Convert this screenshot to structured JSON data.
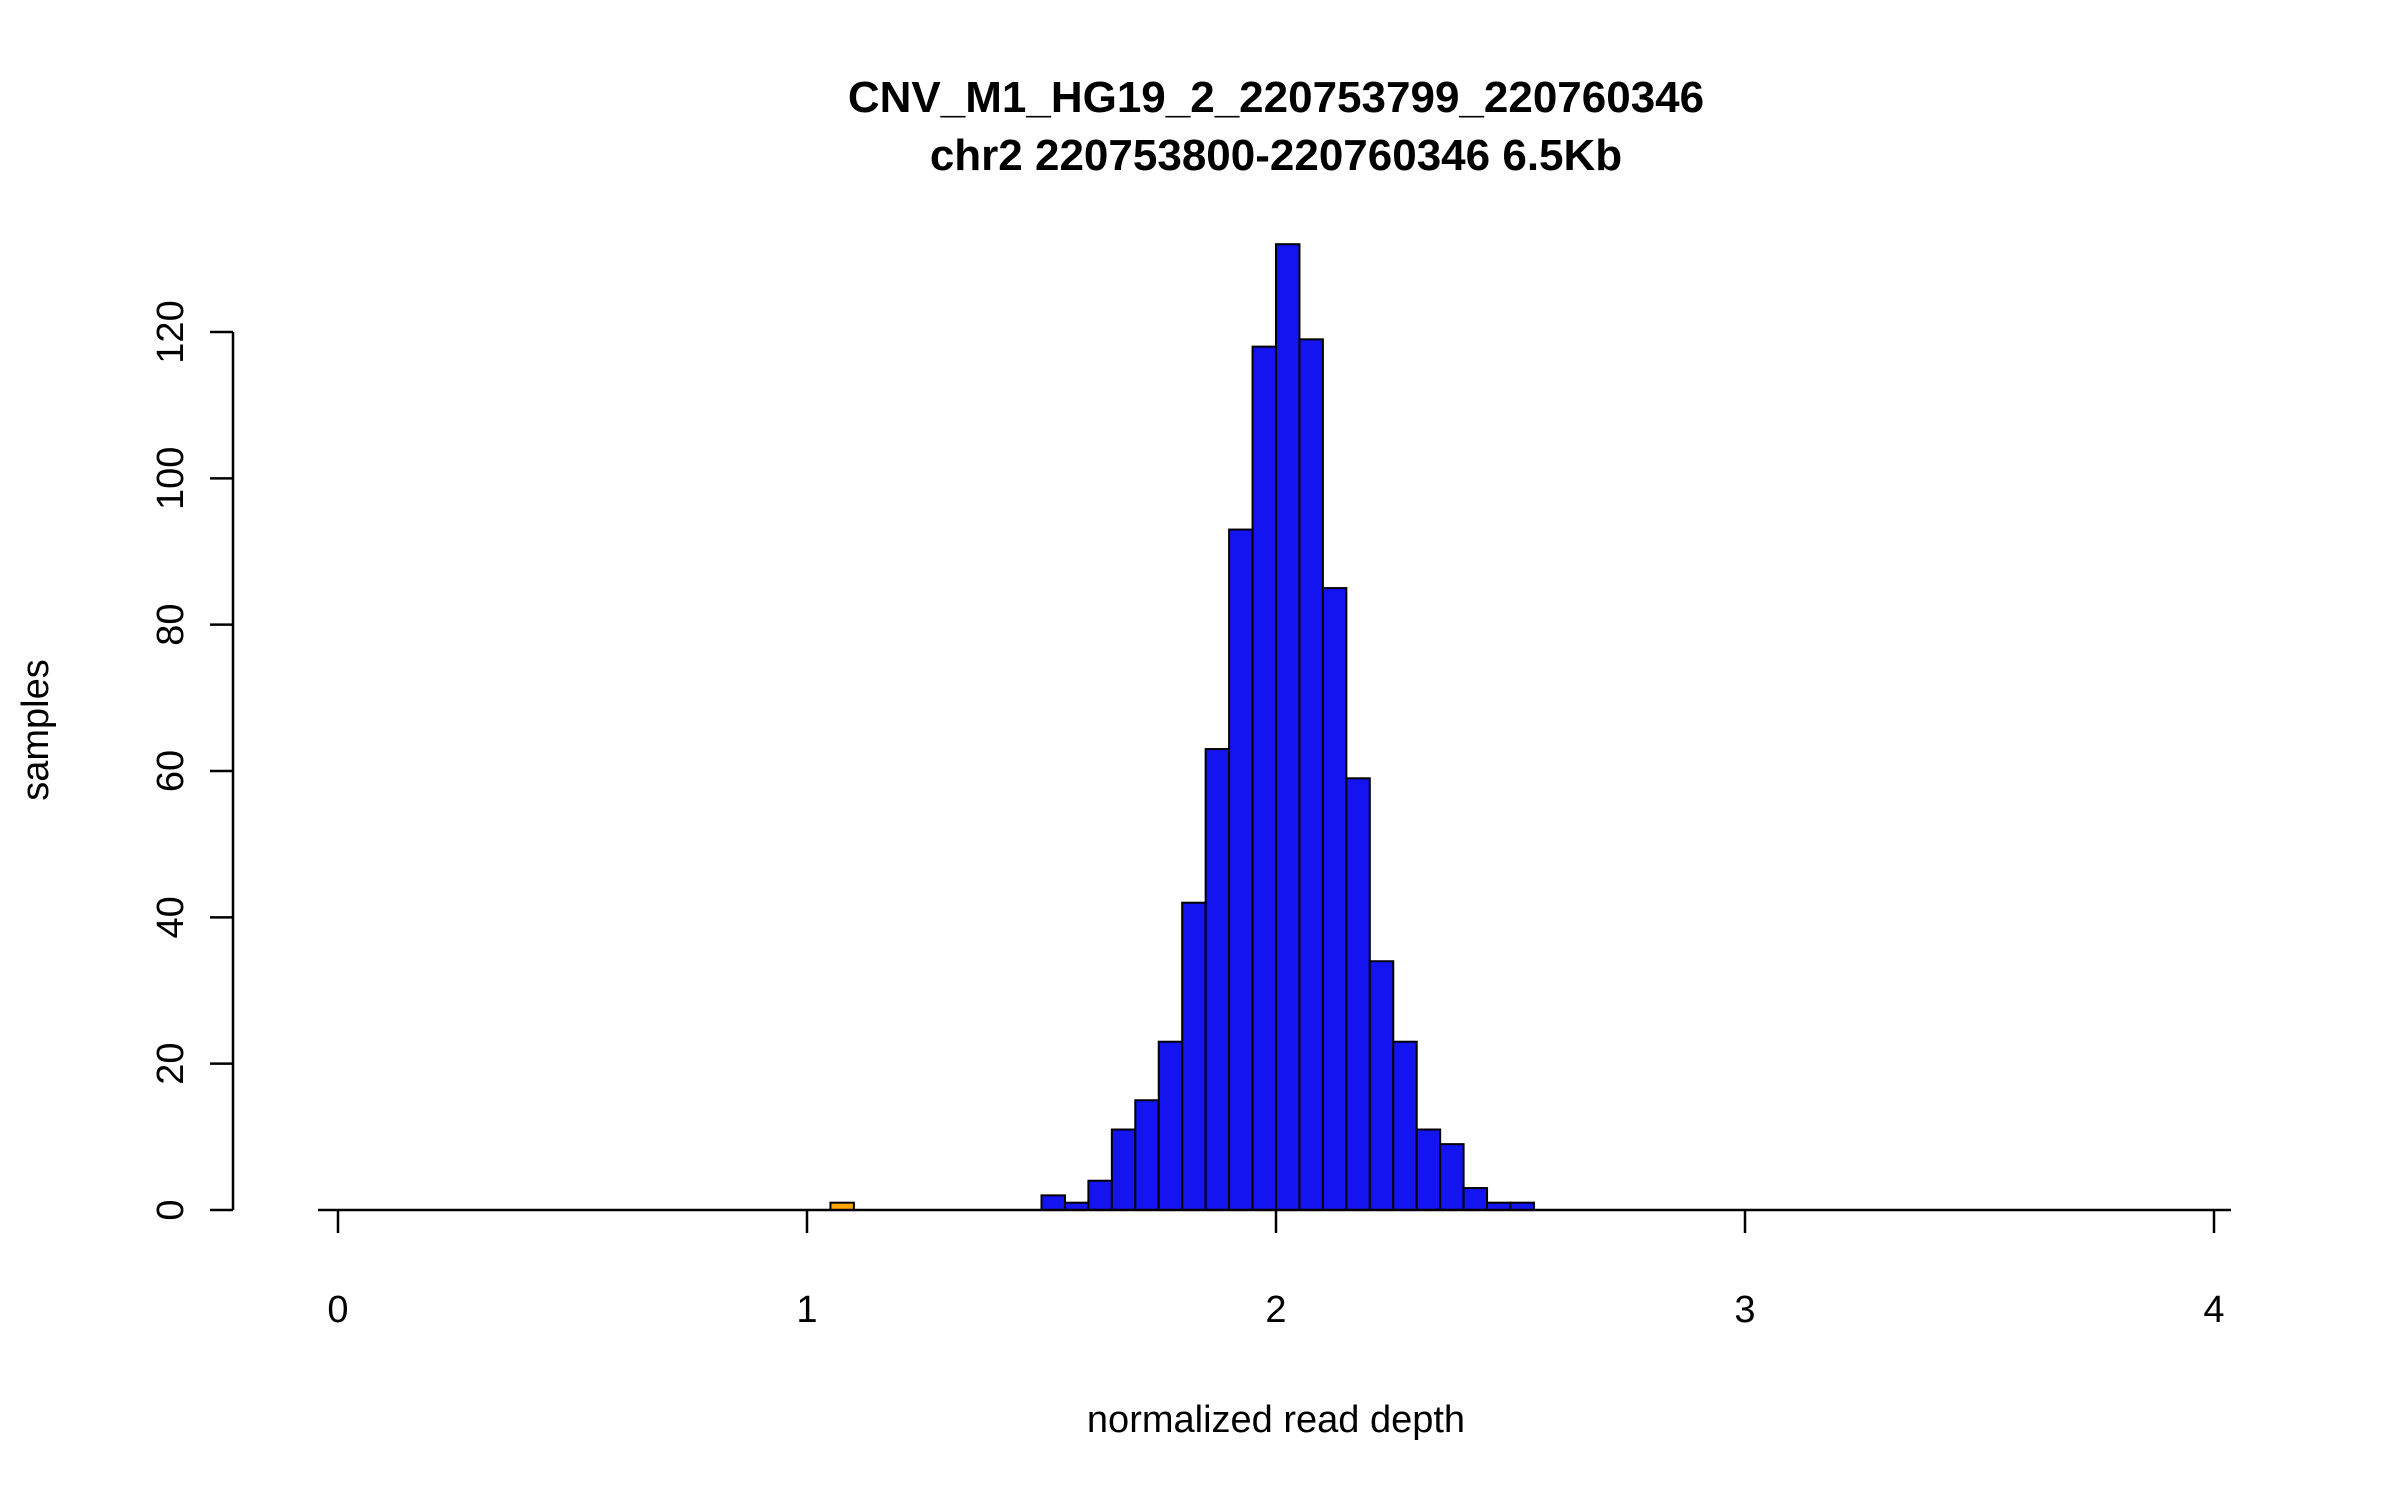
{
  "chart_data": {
    "type": "bar",
    "subtype": "histogram",
    "title": "CNV_M1_HG19_2_220753799_220760346",
    "subtitle": "chr2 220753800-220760346 6.5Kb",
    "xlabel": "normalized read depth",
    "ylabel": "samples",
    "xlim": [
      0,
      4
    ],
    "ylim": [
      0,
      132
    ],
    "x_ticks": [
      0,
      1,
      2,
      3,
      4
    ],
    "y_ticks": [
      0,
      20,
      40,
      60,
      80,
      100,
      120
    ],
    "bin_width": 0.05,
    "bar_stroke_color": "#000000",
    "default_bar_color": "#1414f0",
    "highlight_bar_color": "#ffa500",
    "grid": false,
    "legend": "none",
    "bins": [
      {
        "x0": 1.05,
        "count": 1,
        "fill": "#ffa500"
      },
      {
        "x0": 1.5,
        "count": 2,
        "fill": "#1414f0"
      },
      {
        "x0": 1.55,
        "count": 1,
        "fill": "#1414f0"
      },
      {
        "x0": 1.6,
        "count": 4,
        "fill": "#1414f0"
      },
      {
        "x0": 1.65,
        "count": 11,
        "fill": "#1414f0"
      },
      {
        "x0": 1.7,
        "count": 15,
        "fill": "#1414f0"
      },
      {
        "x0": 1.75,
        "count": 23,
        "fill": "#1414f0"
      },
      {
        "x0": 1.8,
        "count": 42,
        "fill": "#1414f0"
      },
      {
        "x0": 1.85,
        "count": 63,
        "fill": "#1414f0"
      },
      {
        "x0": 1.9,
        "count": 93,
        "fill": "#1414f0"
      },
      {
        "x0": 1.95,
        "count": 118,
        "fill": "#1414f0"
      },
      {
        "x0": 2.0,
        "count": 132,
        "fill": "#1414f0"
      },
      {
        "x0": 2.05,
        "count": 119,
        "fill": "#1414f0"
      },
      {
        "x0": 2.1,
        "count": 85,
        "fill": "#1414f0"
      },
      {
        "x0": 2.15,
        "count": 59,
        "fill": "#1414f0"
      },
      {
        "x0": 2.2,
        "count": 34,
        "fill": "#1414f0"
      },
      {
        "x0": 2.25,
        "count": 23,
        "fill": "#1414f0"
      },
      {
        "x0": 2.3,
        "count": 11,
        "fill": "#1414f0"
      },
      {
        "x0": 2.35,
        "count": 9,
        "fill": "#1414f0"
      },
      {
        "x0": 2.4,
        "count": 3,
        "fill": "#1414f0"
      },
      {
        "x0": 2.45,
        "count": 1,
        "fill": "#1414f0"
      },
      {
        "x0": 2.5,
        "count": 1,
        "fill": "#1414f0"
      }
    ]
  }
}
